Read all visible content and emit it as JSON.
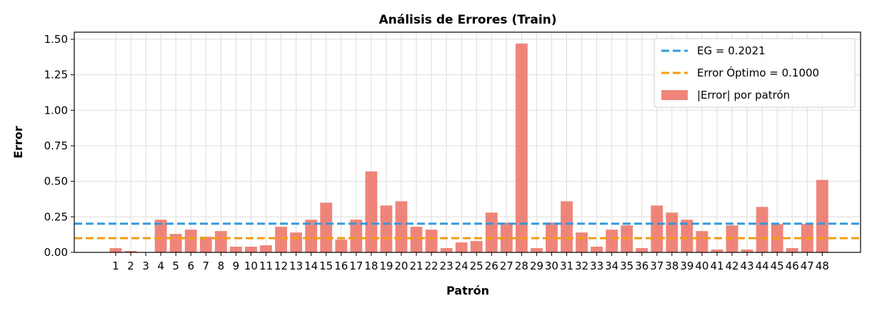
{
  "chart_data": {
    "type": "bar",
    "title": "Análisis de Errores (Train)",
    "xlabel": "Patrón",
    "ylabel": "Error",
    "ylim": [
      0,
      1.55
    ],
    "yticks": [
      "0.00",
      "0.25",
      "0.50",
      "0.75",
      "1.00",
      "1.25",
      "1.50"
    ],
    "grid": true,
    "legend_position": "top-right",
    "categories": [
      "1",
      "2",
      "3",
      "4",
      "5",
      "6",
      "7",
      "8",
      "9",
      "10",
      "11",
      "12",
      "13",
      "14",
      "15",
      "16",
      "17",
      "18",
      "19",
      "20",
      "21",
      "22",
      "23",
      "24",
      "25",
      "26",
      "27",
      "28",
      "29",
      "30",
      "31",
      "32",
      "33",
      "34",
      "35",
      "36",
      "37",
      "38",
      "39",
      "40",
      "41",
      "42",
      "43",
      "44",
      "45",
      "46",
      "47",
      "48"
    ],
    "series": [
      {
        "name": "|Error| por patrón",
        "color": "#ec7063",
        "values": [
          0.03,
          0.01,
          0.0,
          0.23,
          0.13,
          0.16,
          0.11,
          0.15,
          0.04,
          0.04,
          0.05,
          0.18,
          0.14,
          0.23,
          0.35,
          0.09,
          0.23,
          0.57,
          0.33,
          0.36,
          0.18,
          0.16,
          0.03,
          0.07,
          0.08,
          0.28,
          0.21,
          1.47,
          0.03,
          0.21,
          0.36,
          0.14,
          0.04,
          0.16,
          0.19,
          0.03,
          0.33,
          0.28,
          0.23,
          0.15,
          0.02,
          0.19,
          0.02,
          0.32,
          0.2,
          0.03,
          0.2,
          0.51
        ]
      }
    ],
    "reference_lines": [
      {
        "label": "EG = 0.2021",
        "value": 0.2021,
        "color": "#3498db",
        "style": "dashed"
      },
      {
        "label": "Error Óptimo = 0.1000",
        "value": 0.1,
        "color": "#f39c12",
        "style": "dashed"
      }
    ]
  }
}
